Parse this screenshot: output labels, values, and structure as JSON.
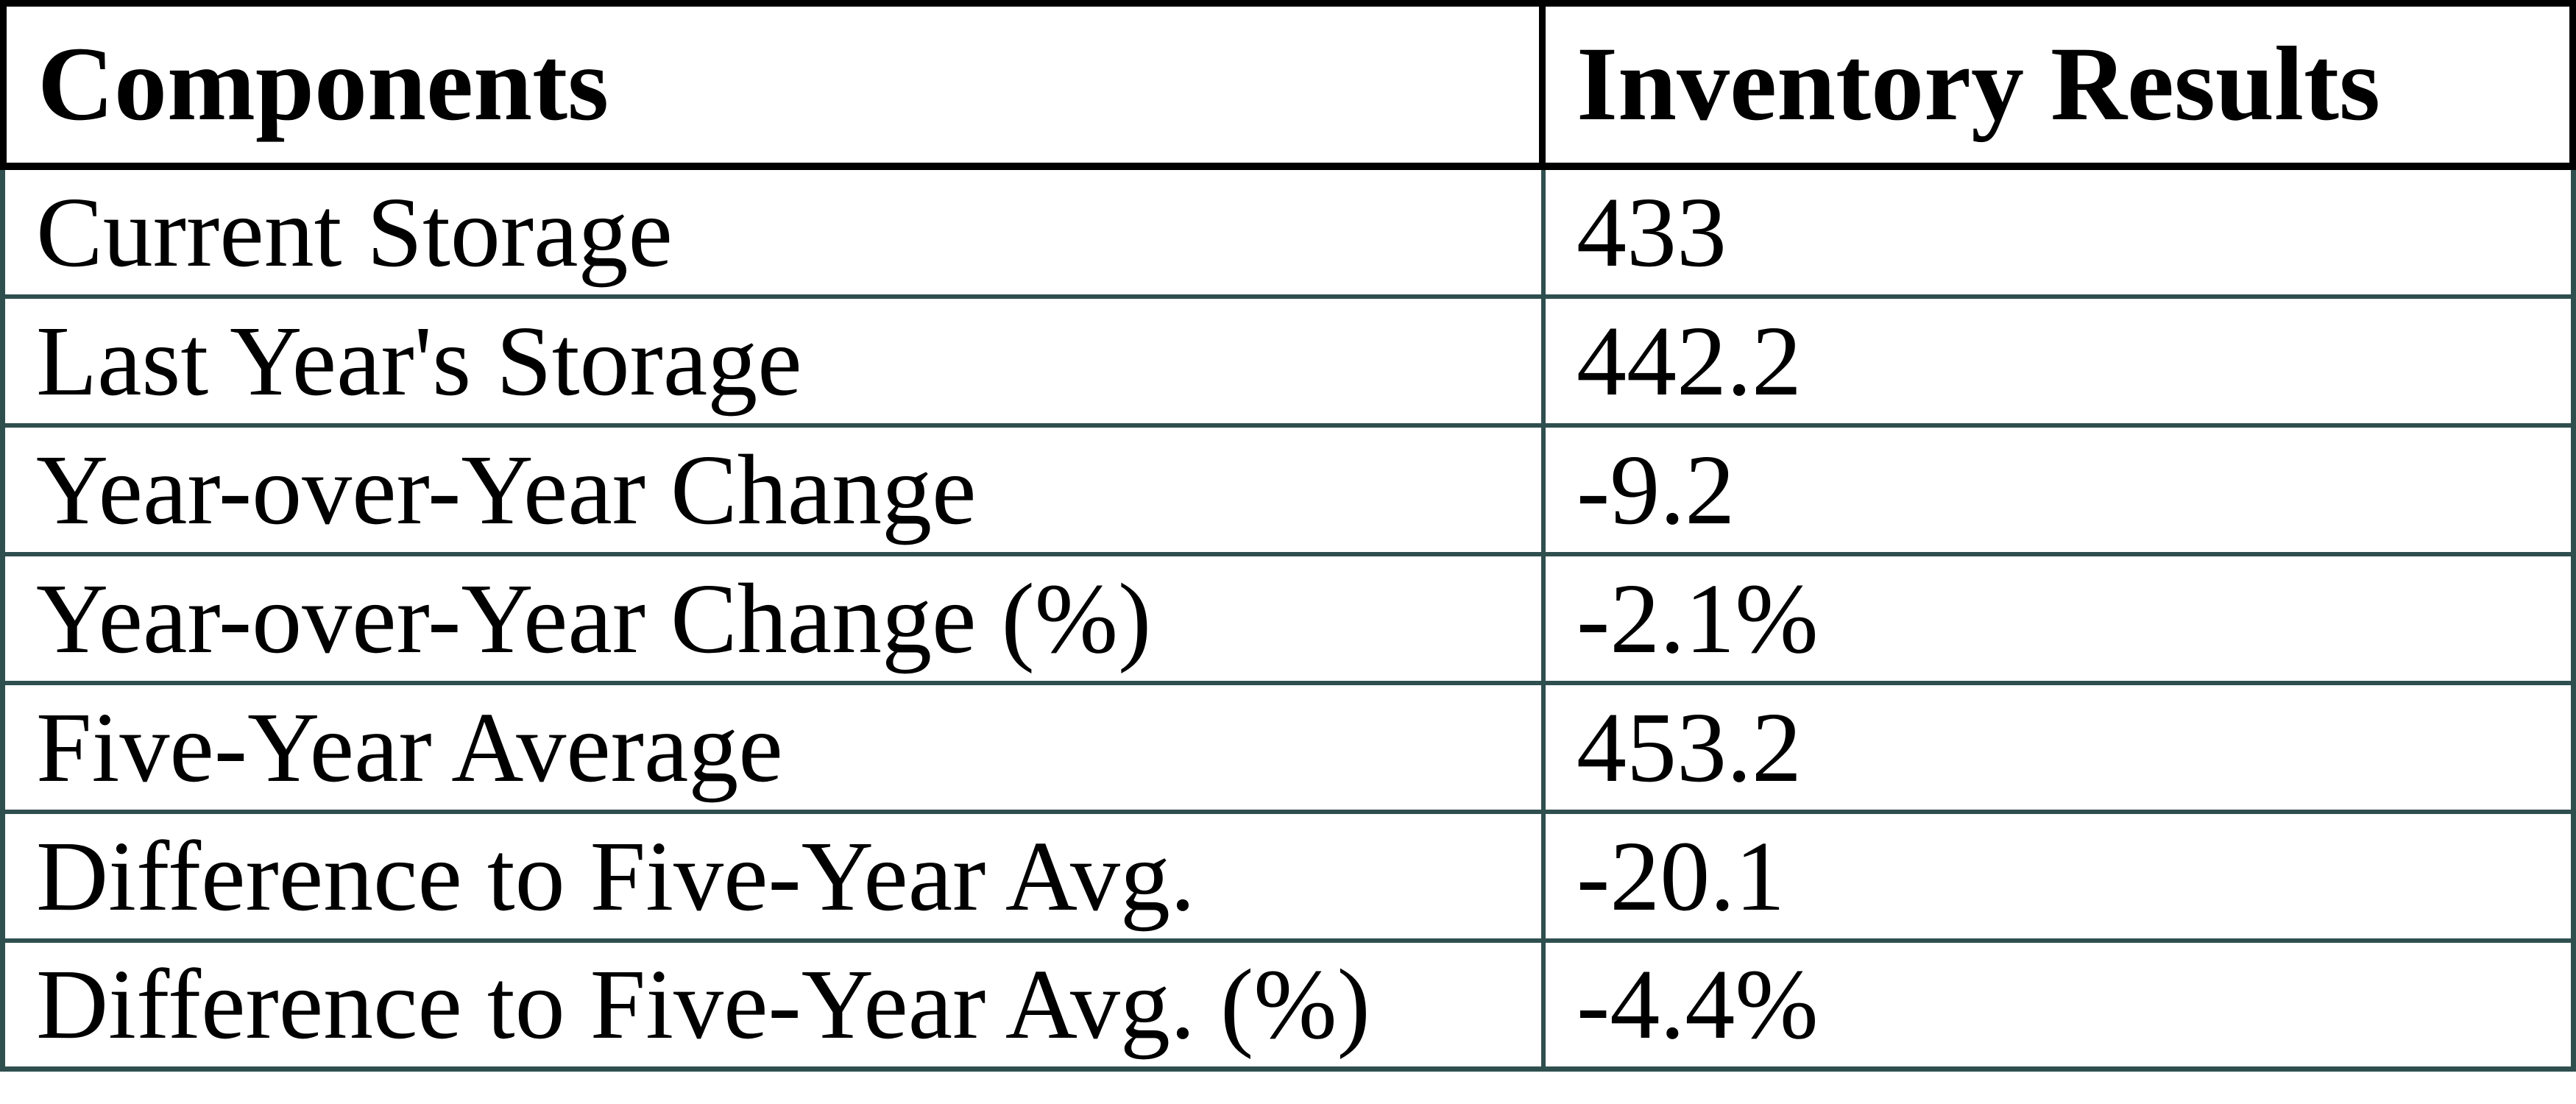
{
  "table": {
    "columns": [
      "Components",
      "Inventory Results"
    ],
    "rows": [
      {
        "label": "Current Storage",
        "value": "433"
      },
      {
        "label": "Last Year's Storage",
        "value": "442.2"
      },
      {
        "label": "Year-over-Year Change",
        "value": "-9.2"
      },
      {
        "label": "Year-over-Year Change (%)",
        "value": "-2.1%"
      },
      {
        "label": "Five-Year Average",
        "value": "453.2"
      },
      {
        "label": "Difference to Five-Year Avg.",
        "value": "-20.1"
      },
      {
        "label": "Difference to Five-Year Avg. (%)",
        "value": "-4.4%"
      }
    ]
  },
  "colors": {
    "header_border": "#000000",
    "body_border": "#2F4F4F",
    "text": "#000000",
    "background": "#FFFFFF"
  },
  "chart_data": {
    "type": "table",
    "title": "Inventory Results",
    "columns": [
      "Components",
      "Inventory Results"
    ],
    "rows": [
      [
        "Current Storage",
        433
      ],
      [
        "Last Year's Storage",
        442.2
      ],
      [
        "Year-over-Year Change",
        -9.2
      ],
      [
        "Year-over-Year Change (%)",
        "-2.1%"
      ],
      [
        "Five-Year Average",
        453.2
      ],
      [
        "Difference to Five-Year Avg.",
        -20.1
      ],
      [
        "Difference to Five-Year Avg. (%)",
        "-4.4%"
      ]
    ]
  }
}
